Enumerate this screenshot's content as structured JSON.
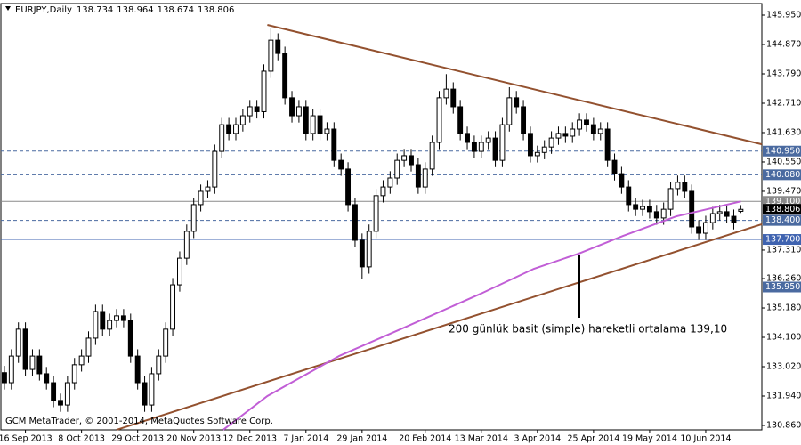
{
  "chart_data": {
    "type": "candlestick",
    "title": "EURJPY,Daily",
    "footer": "GCM MetaTrader, © 2001-2014, MetaQuotes Software Corp.",
    "annotation": "200 günlük basit (simple) hareketli ortalama 139,10",
    "xlim": [
      -0.5,
      108
    ],
    "ylim": [
      130.696,
      146.376
    ],
    "xticks": [
      {
        "value": 3,
        "label": "16 Sep 2013"
      },
      {
        "value": 11,
        "label": "8 Oct 2013"
      },
      {
        "value": 19,
        "label": "29 Oct 2013"
      },
      {
        "value": 27,
        "label": "20 Nov 2013"
      },
      {
        "value": 35,
        "label": "12 Dec 2013"
      },
      {
        "value": 43,
        "label": "7 Jan 2014"
      },
      {
        "value": 51,
        "label": "29 Jan 2014"
      },
      {
        "value": 60,
        "label": "20 Feb 2014"
      },
      {
        "value": 68,
        "label": "13 Mar 2014"
      },
      {
        "value": 76,
        "label": "3 Apr 2014"
      },
      {
        "value": 84,
        "label": "25 Apr 2014"
      },
      {
        "value": 92,
        "label": "19 May 2014"
      },
      {
        "value": 100,
        "label": "10 Jun 2014"
      }
    ],
    "yticks": [
      {
        "value": 145.95,
        "label": "145.950"
      },
      {
        "value": 144.87,
        "label": "144.870"
      },
      {
        "value": 143.79,
        "label": "143.790"
      },
      {
        "value": 142.71,
        "label": "142.710"
      },
      {
        "value": 141.63,
        "label": "141.630"
      },
      {
        "value": 140.55,
        "label": "140.550"
      },
      {
        "value": 139.47,
        "label": "139.470"
      },
      {
        "value": 137.31,
        "label": "137.310"
      },
      {
        "value": 136.26,
        "label": "136.260"
      },
      {
        "value": 135.18,
        "label": "135.180"
      },
      {
        "value": 134.1,
        "label": "134.100"
      },
      {
        "value": 133.02,
        "label": "133.020"
      },
      {
        "value": 131.94,
        "label": "131.940"
      },
      {
        "value": 130.86,
        "label": "130.860"
      }
    ],
    "up_color": "#ffffff",
    "down_color": "#000000",
    "open": [
      132.8,
      132.43,
      133.41,
      134.4,
      132.92,
      133.41,
      132.76,
      132.43,
      131.78,
      131.61,
      132.43,
      133.09,
      133.41,
      134.07,
      135.05,
      134.4,
      134.72,
      134.89,
      134.72,
      133.41,
      132.43,
      131.61,
      132.76,
      133.41,
      134.4,
      136.03,
      137.01,
      138.0,
      138.98,
      139.47,
      139.63,
      140.94,
      141.92,
      141.6,
      141.92,
      142.25,
      142.58,
      142.4,
      143.89,
      145.03,
      144.54,
      142.91,
      142.25,
      142.58,
      141.6,
      142.25,
      141.6,
      141.76,
      140.61,
      140.29,
      138.98,
      137.67,
      136.69,
      138.0,
      139.31,
      139.63,
      139.96,
      140.61,
      140.78,
      140.45,
      139.63,
      140.29,
      141.27,
      142.91,
      143.23,
      142.58,
      141.6,
      141.27,
      140.94,
      141.27,
      141.43,
      140.61,
      141.92,
      142.91,
      142.58,
      141.6,
      140.78,
      140.9,
      141.1,
      141.43,
      141.6,
      141.5,
      141.76,
      142.09,
      141.92,
      141.6,
      141.76,
      140.61,
      140.12,
      139.63,
      138.98,
      138.81,
      138.91,
      138.72,
      138.49,
      138.81,
      139.57,
      139.8,
      139.47,
      138.16,
      137.93,
      138.32,
      138.65,
      138.72,
      138.55,
      138.734
    ],
    "high": [
      133.05,
      133.66,
      134.65,
      134.65,
      133.66,
      133.66,
      133.01,
      132.68,
      132.03,
      132.68,
      133.34,
      133.66,
      134.32,
      135.3,
      135.3,
      134.97,
      135.14,
      135.14,
      134.97,
      133.66,
      132.68,
      133.01,
      133.66,
      134.65,
      136.28,
      137.26,
      138.25,
      139.23,
      139.72,
      139.88,
      141.19,
      142.17,
      142.17,
      142.17,
      142.5,
      142.83,
      142.83,
      144.14,
      145.48,
      145.28,
      144.79,
      143.16,
      142.83,
      142.83,
      142.5,
      142.5,
      142.01,
      142.01,
      140.86,
      140.54,
      139.23,
      137.92,
      138.25,
      139.56,
      139.88,
      140.21,
      140.86,
      141.03,
      141.03,
      140.7,
      140.54,
      141.52,
      143.16,
      143.78,
      143.48,
      142.83,
      141.85,
      141.52,
      141.52,
      141.68,
      141.68,
      142.17,
      143.3,
      143.16,
      142.83,
      141.85,
      141.15,
      141.35,
      141.68,
      141.85,
      141.85,
      142.01,
      142.34,
      142.34,
      142.17,
      142.01,
      142.01,
      140.86,
      140.37,
      139.88,
      139.23,
      139.16,
      139.16,
      138.97,
      139.06,
      139.82,
      140.05,
      140.05,
      139.72,
      138.41,
      138.57,
      138.9,
      138.97,
      138.97,
      138.8,
      138.964
    ],
    "low": [
      132.18,
      132.18,
      133.16,
      132.67,
      132.67,
      132.51,
      132.18,
      131.53,
      131.36,
      131.36,
      132.18,
      132.84,
      133.16,
      133.82,
      134.15,
      134.15,
      134.47,
      134.47,
      133.16,
      132.18,
      131.36,
      131.36,
      132.51,
      133.16,
      134.15,
      135.78,
      136.76,
      137.75,
      138.73,
      139.22,
      139.38,
      140.69,
      141.35,
      141.35,
      141.67,
      142.0,
      142.15,
      142.15,
      143.64,
      144.29,
      142.66,
      142.0,
      142.0,
      141.35,
      141.35,
      141.35,
      141.35,
      140.36,
      140.04,
      138.73,
      137.42,
      136.24,
      136.44,
      137.75,
      139.06,
      139.38,
      139.71,
      140.36,
      140.2,
      139.38,
      139.38,
      140.04,
      141.02,
      142.66,
      142.33,
      141.35,
      141.02,
      140.69,
      140.69,
      141.02,
      140.36,
      140.36,
      141.67,
      142.33,
      141.35,
      140.53,
      140.53,
      140.65,
      140.85,
      141.18,
      141.25,
      141.25,
      141.51,
      141.67,
      141.35,
      141.35,
      140.36,
      139.87,
      139.38,
      138.73,
      138.56,
      138.56,
      138.47,
      138.24,
      138.24,
      138.56,
      139.32,
      139.22,
      137.91,
      137.68,
      137.68,
      138.07,
      138.4,
      138.3,
      138.07,
      138.674
    ],
    "close": [
      132.43,
      133.41,
      134.4,
      132.92,
      133.41,
      132.76,
      132.43,
      131.78,
      131.61,
      132.43,
      133.09,
      133.41,
      134.07,
      135.05,
      134.4,
      134.72,
      134.89,
      134.72,
      133.41,
      132.43,
      131.61,
      132.76,
      133.41,
      134.4,
      136.03,
      137.01,
      138.0,
      138.98,
      139.47,
      139.63,
      140.94,
      141.92,
      141.6,
      141.92,
      142.25,
      142.58,
      142.4,
      143.89,
      145.03,
      144.54,
      142.91,
      142.25,
      142.58,
      141.6,
      142.25,
      141.6,
      141.76,
      140.61,
      140.29,
      138.98,
      137.67,
      136.69,
      138.0,
      139.31,
      139.63,
      139.96,
      140.61,
      140.78,
      140.45,
      139.63,
      140.29,
      141.27,
      142.91,
      143.23,
      142.58,
      141.6,
      141.27,
      140.94,
      141.27,
      141.43,
      140.61,
      141.92,
      142.91,
      142.58,
      141.6,
      140.78,
      140.9,
      141.1,
      141.43,
      141.6,
      141.5,
      141.76,
      142.09,
      141.92,
      141.6,
      141.76,
      140.61,
      140.12,
      139.63,
      138.98,
      138.81,
      138.91,
      138.72,
      138.49,
      138.81,
      139.57,
      139.8,
      139.47,
      138.16,
      137.93,
      138.32,
      138.65,
      138.72,
      138.55,
      138.32,
      138.806
    ],
    "trendlines": [
      {
        "color": "#93512f",
        "x": [
          37.5,
          108
        ],
        "y": [
          145.59,
          141.2
        ]
      },
      {
        "color": "#93512f",
        "x": [
          16,
          108
        ],
        "y": [
          130.7,
          138.26
        ]
      }
    ],
    "moving_average": {
      "color": "#c15ed6",
      "x": [
        31.2,
        37.5,
        47.7,
        56.5,
        67.9,
        75.5,
        81.9,
        88.2,
        95.8,
        105
      ],
      "y": [
        130.7,
        131.94,
        133.41,
        134.4,
        135.7,
        136.62,
        137.18,
        137.83,
        138.55,
        139.1
      ]
    },
    "levels": [
      {
        "value": 140.95,
        "label": "140.950",
        "style": "dashed",
        "color": "#4a6aa0"
      },
      {
        "value": 140.08,
        "label": "140.080",
        "style": "dashed",
        "color": "#4a6aa0"
      },
      {
        "value": 139.1,
        "label": "139.100",
        "style": "solid",
        "color": "#8a8a8a"
      },
      {
        "value": 138.4,
        "label": "138.400",
        "style": "dashed",
        "color": "#4a6aa0"
      },
      {
        "value": 137.7,
        "label": "137.700",
        "style": "solid",
        "color": "#3f63b0"
      },
      {
        "value": 135.95,
        "label": "135.950",
        "style": "dashed",
        "color": "#4a6aa0"
      }
    ]
  }
}
